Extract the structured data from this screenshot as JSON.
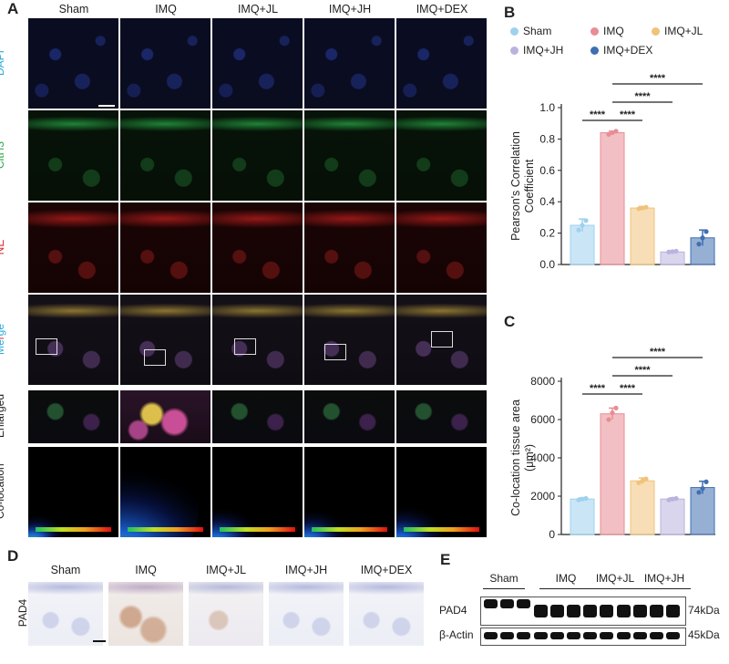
{
  "panel_a": {
    "letter": "A",
    "columns": [
      "Sham",
      "IMQ",
      "IMQ+JL",
      "IMQ+JH",
      "IMQ+DEX"
    ],
    "rows": [
      {
        "label": "DAPI",
        "color": "#2aa8d8"
      },
      {
        "label": "CitH3",
        "color": "#2aa24a"
      },
      {
        "label": "NE",
        "color": "#d42a2a"
      },
      {
        "label_parts": [
          "Me",
          "r",
          "ge"
        ],
        "colors": [
          "#2aa8d8",
          "#d42a2a",
          "#2aa8d8"
        ]
      },
      {
        "label": "Enlarged",
        "color": "#222222"
      },
      {
        "label": "Co-location",
        "color": "#222222"
      }
    ]
  },
  "panel_b": {
    "letter": "B"
  },
  "panel_c": {
    "letter": "C"
  },
  "panel_d": {
    "letter": "D",
    "columns": [
      "Sham",
      "IMQ",
      "IMQ+JL",
      "IMQ+JH",
      "IMQ+DEX"
    ],
    "row_label": "PAD4"
  },
  "panel_e": {
    "letter": "E",
    "groups": [
      "Sham",
      "IMQ",
      "IMQ+JL",
      "IMQ+JH"
    ],
    "rows": [
      {
        "label": "PAD4",
        "size": "74kDa"
      },
      {
        "label": "β-Actin",
        "size": "45kDa"
      }
    ]
  },
  "legend": {
    "items": [
      {
        "name": "Sham",
        "color": "#9fd1ee"
      },
      {
        "name": "IMQ",
        "color": "#e88d94"
      },
      {
        "name": "IMQ+JL",
        "color": "#f0c27a"
      },
      {
        "name": "IMQ+JH",
        "color": "#b9b3df"
      },
      {
        "name": "IMQ+DEX",
        "color": "#3f6fb0"
      }
    ]
  },
  "chart_data": [
    {
      "type": "bar",
      "panel": "B",
      "categories": [
        "Sham",
        "IMQ",
        "IMQ+JL",
        "IMQ+JH",
        "IMQ+DEX"
      ],
      "values": [
        0.25,
        0.84,
        0.36,
        0.08,
        0.17
      ],
      "errors": [
        0.04,
        0.01,
        0.01,
        0.005,
        0.05
      ],
      "points": [
        [
          0.22,
          0.25,
          0.28
        ],
        [
          0.83,
          0.84,
          0.85
        ],
        [
          0.355,
          0.36,
          0.365
        ],
        [
          0.08,
          0.082,
          0.085
        ],
        [
          0.13,
          0.17,
          0.21
        ]
      ],
      "colors": [
        "#9fd1ee",
        "#e88d94",
        "#f0c27a",
        "#b9b3df",
        "#3f6fb0"
      ],
      "ylabel": "Pearson's Correlation Coefficient",
      "ylabel_lines": [
        "Pearson's Correlation",
        "Coefficient"
      ],
      "ylim": [
        0,
        1.0
      ],
      "yticks": [
        "0.0",
        "0.2",
        "0.4",
        "0.6",
        "0.8",
        "1.0"
      ],
      "significance": [
        {
          "from": 1,
          "to": 2,
          "label": "****"
        },
        {
          "from": 0,
          "to": 1,
          "label": "****"
        },
        {
          "from": 1,
          "to": 3,
          "label": "****"
        },
        {
          "from": 1,
          "to": 4,
          "label": "****"
        }
      ]
    },
    {
      "type": "bar",
      "panel": "C",
      "categories": [
        "Sham",
        "IMQ",
        "IMQ+JL",
        "IMQ+JH",
        "IMQ+DEX"
      ],
      "values": [
        1850,
        6300,
        2800,
        1850,
        2450
      ],
      "errors": [
        60,
        300,
        150,
        60,
        330
      ],
      "points": [
        [
          1800,
          1850,
          1880
        ],
        [
          6000,
          6350,
          6600
        ],
        [
          2700,
          2800,
          2900
        ],
        [
          1800,
          1850,
          1880
        ],
        [
          2200,
          2400,
          2750
        ]
      ],
      "colors": [
        "#9fd1ee",
        "#e88d94",
        "#f0c27a",
        "#b9b3df",
        "#3f6fb0"
      ],
      "ylabel": "Co-location tissue area (μm²)",
      "ylabel_lines": [
        "Co-location tissue area",
        "(μm²)"
      ],
      "ylim": [
        0,
        8000
      ],
      "yticks": [
        "0",
        "2000",
        "4000",
        "6000",
        "8000"
      ],
      "significance": [
        {
          "from": 0,
          "to": 1,
          "label": "****"
        },
        {
          "from": 1,
          "to": 2,
          "label": "****"
        },
        {
          "from": 1,
          "to": 3,
          "label": "****"
        },
        {
          "from": 1,
          "to": 4,
          "label": "****"
        }
      ]
    }
  ]
}
